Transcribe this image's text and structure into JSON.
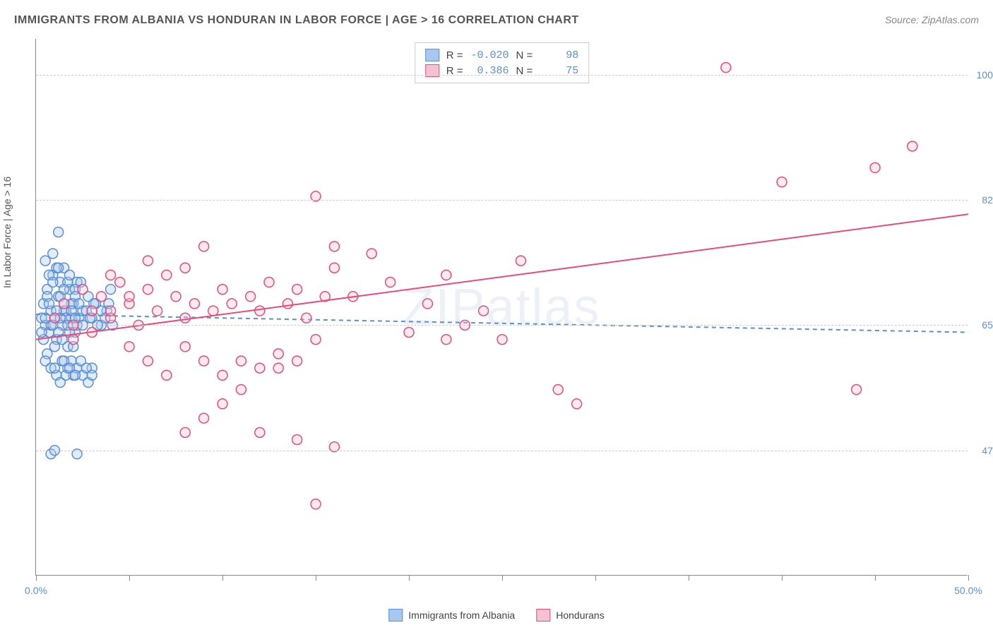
{
  "title": "IMMIGRANTS FROM ALBANIA VS HONDURAN IN LABOR FORCE | AGE > 16 CORRELATION CHART",
  "source": "Source: ZipAtlas.com",
  "y_axis_label": "In Labor Force | Age > 16",
  "watermark": "ZIPatlas",
  "chart": {
    "type": "scatter",
    "xlim": [
      0,
      50
    ],
    "ylim": [
      30,
      105
    ],
    "x_ticks": [
      0,
      5,
      10,
      15,
      20,
      25,
      30,
      35,
      40,
      45,
      50
    ],
    "x_tick_labels": {
      "0": "0.0%",
      "50": "50.0%"
    },
    "y_gridlines": [
      47.5,
      65.0,
      82.5,
      100.0
    ],
    "y_tick_labels": [
      "47.5%",
      "65.0%",
      "82.5%",
      "100.0%"
    ],
    "background_color": "#ffffff",
    "grid_color": "#cccccc",
    "marker_radius": 7,
    "marker_fill_opacity": 0.35,
    "marker_stroke_width": 1.5,
    "line_width": 2
  },
  "series": [
    {
      "name": "Immigrants from Albania",
      "color_fill": "#a8c8f0",
      "color_stroke": "#5b8fd6",
      "R": "-0.020",
      "N": "98",
      "trend": {
        "y_at_x0": 66.5,
        "y_at_x50": 64.0,
        "dashed": true
      },
      "points": [
        [
          0.3,
          66
        ],
        [
          0.4,
          68
        ],
        [
          0.5,
          65
        ],
        [
          0.6,
          70
        ],
        [
          0.7,
          64
        ],
        [
          0.8,
          67
        ],
        [
          0.9,
          72
        ],
        [
          1.0,
          66
        ],
        [
          1.1,
          63
        ],
        [
          1.2,
          69
        ],
        [
          1.3,
          71
        ],
        [
          1.4,
          65
        ],
        [
          1.5,
          73
        ],
        [
          1.6,
          67
        ],
        [
          1.7,
          62
        ],
        [
          1.8,
          70
        ],
        [
          1.9,
          66
        ],
        [
          2.0,
          68
        ],
        [
          2.1,
          64
        ],
        [
          2.2,
          71
        ],
        [
          0.5,
          74
        ],
        [
          0.7,
          72
        ],
        [
          0.9,
          75
        ],
        [
          1.1,
          73
        ],
        [
          1.3,
          69
        ],
        [
          1.5,
          67
        ],
        [
          1.7,
          71
        ],
        [
          1.9,
          68
        ],
        [
          2.1,
          70
        ],
        [
          2.3,
          66
        ],
        [
          0.4,
          63
        ],
        [
          0.6,
          61
        ],
        [
          0.8,
          65
        ],
        [
          1.0,
          62
        ],
        [
          1.2,
          64
        ],
        [
          1.4,
          63
        ],
        [
          1.6,
          66
        ],
        [
          1.8,
          64
        ],
        [
          2.0,
          62
        ],
        [
          2.2,
          65
        ],
        [
          0.5,
          60
        ],
        [
          0.8,
          59
        ],
        [
          1.1,
          58
        ],
        [
          1.4,
          60
        ],
        [
          1.7,
          59
        ],
        [
          2.0,
          58
        ],
        [
          2.5,
          67
        ],
        [
          2.8,
          69
        ],
        [
          3.0,
          66
        ],
        [
          3.2,
          68
        ],
        [
          3.5,
          65
        ],
        [
          3.8,
          67
        ],
        [
          4.0,
          70
        ],
        [
          1.0,
          59
        ],
        [
          1.3,
          57
        ],
        [
          1.6,
          58
        ],
        [
          1.9,
          60
        ],
        [
          2.2,
          59
        ],
        [
          2.5,
          58
        ],
        [
          2.8,
          57
        ],
        [
          3.0,
          59
        ],
        [
          0.6,
          69
        ],
        [
          0.9,
          71
        ],
        [
          1.2,
          73
        ],
        [
          1.5,
          70
        ],
        [
          1.8,
          72
        ],
        [
          2.1,
          69
        ],
        [
          2.4,
          71
        ],
        [
          0.3,
          64
        ],
        [
          0.5,
          66
        ],
        [
          0.7,
          68
        ],
        [
          0.9,
          65
        ],
        [
          1.1,
          67
        ],
        [
          1.3,
          66
        ],
        [
          1.5,
          68
        ],
        [
          1.7,
          65
        ],
        [
          1.9,
          67
        ],
        [
          2.1,
          66
        ],
        [
          2.3,
          68
        ],
        [
          2.5,
          65
        ],
        [
          2.7,
          67
        ],
        [
          2.9,
          66
        ],
        [
          3.1,
          68
        ],
        [
          3.3,
          65
        ],
        [
          3.5,
          67
        ],
        [
          3.7,
          66
        ],
        [
          3.9,
          68
        ],
        [
          4.1,
          65
        ],
        [
          1.2,
          78
        ],
        [
          1.5,
          60
        ],
        [
          1.8,
          59
        ],
        [
          2.1,
          58
        ],
        [
          2.4,
          60
        ],
        [
          2.7,
          59
        ],
        [
          3.0,
          58
        ],
        [
          0.8,
          47
        ],
        [
          1.0,
          47.5
        ],
        [
          2.2,
          47
        ]
      ]
    },
    {
      "name": "Hondurans",
      "color_fill": "#f5c2d1",
      "color_stroke": "#e94b7a",
      "R": "0.386",
      "N": "75",
      "trend": {
        "y_at_x0": 63.0,
        "y_at_x50": 80.5,
        "dashed": false
      },
      "points": [
        [
          1.0,
          66
        ],
        [
          1.5,
          68
        ],
        [
          2.0,
          65
        ],
        [
          2.5,
          70
        ],
        [
          3.0,
          67
        ],
        [
          3.5,
          69
        ],
        [
          4.0,
          66
        ],
        [
          4.5,
          71
        ],
        [
          5.0,
          68
        ],
        [
          5.5,
          65
        ],
        [
          6.0,
          70
        ],
        [
          6.5,
          67
        ],
        [
          7.0,
          72
        ],
        [
          7.5,
          69
        ],
        [
          8.0,
          66
        ],
        [
          8.5,
          68
        ],
        [
          9.0,
          76
        ],
        [
          9.5,
          67
        ],
        [
          10.0,
          70
        ],
        [
          10.5,
          68
        ],
        [
          11.0,
          60
        ],
        [
          11.5,
          69
        ],
        [
          12.0,
          67
        ],
        [
          12.5,
          71
        ],
        [
          13.0,
          59
        ],
        [
          13.5,
          68
        ],
        [
          14.0,
          70
        ],
        [
          14.5,
          66
        ],
        [
          15.0,
          83
        ],
        [
          15.5,
          69
        ],
        [
          8.0,
          62
        ],
        [
          9.0,
          60
        ],
        [
          10.0,
          58
        ],
        [
          11.0,
          56
        ],
        [
          12.0,
          59
        ],
        [
          13.0,
          61
        ],
        [
          14.0,
          60
        ],
        [
          15.0,
          63
        ],
        [
          16.0,
          73
        ],
        [
          17.0,
          69
        ],
        [
          18.0,
          75
        ],
        [
          19.0,
          71
        ],
        [
          20.0,
          64
        ],
        [
          21.0,
          68
        ],
        [
          22.0,
          63
        ],
        [
          23.0,
          65
        ],
        [
          24.0,
          67
        ],
        [
          25.0,
          63
        ],
        [
          26.0,
          74
        ],
        [
          28.0,
          56
        ],
        [
          5.0,
          62
        ],
        [
          6.0,
          60
        ],
        [
          7.0,
          58
        ],
        [
          8.0,
          50
        ],
        [
          9.0,
          52
        ],
        [
          10.0,
          54
        ],
        [
          12.0,
          50
        ],
        [
          14.0,
          49
        ],
        [
          15.0,
          40
        ],
        [
          16.0,
          48
        ],
        [
          4.0,
          72
        ],
        [
          6.0,
          74
        ],
        [
          8.0,
          73
        ],
        [
          16.0,
          76
        ],
        [
          22.0,
          72
        ],
        [
          37.0,
          101
        ],
        [
          45.0,
          87
        ],
        [
          40.0,
          85
        ],
        [
          29.0,
          54
        ],
        [
          44.0,
          56
        ],
        [
          2.0,
          63
        ],
        [
          3.0,
          64
        ],
        [
          4.0,
          67
        ],
        [
          5.0,
          69
        ],
        [
          47.0,
          90
        ]
      ]
    }
  ],
  "legend_labels": {
    "R": "R =",
    "N": "N ="
  }
}
